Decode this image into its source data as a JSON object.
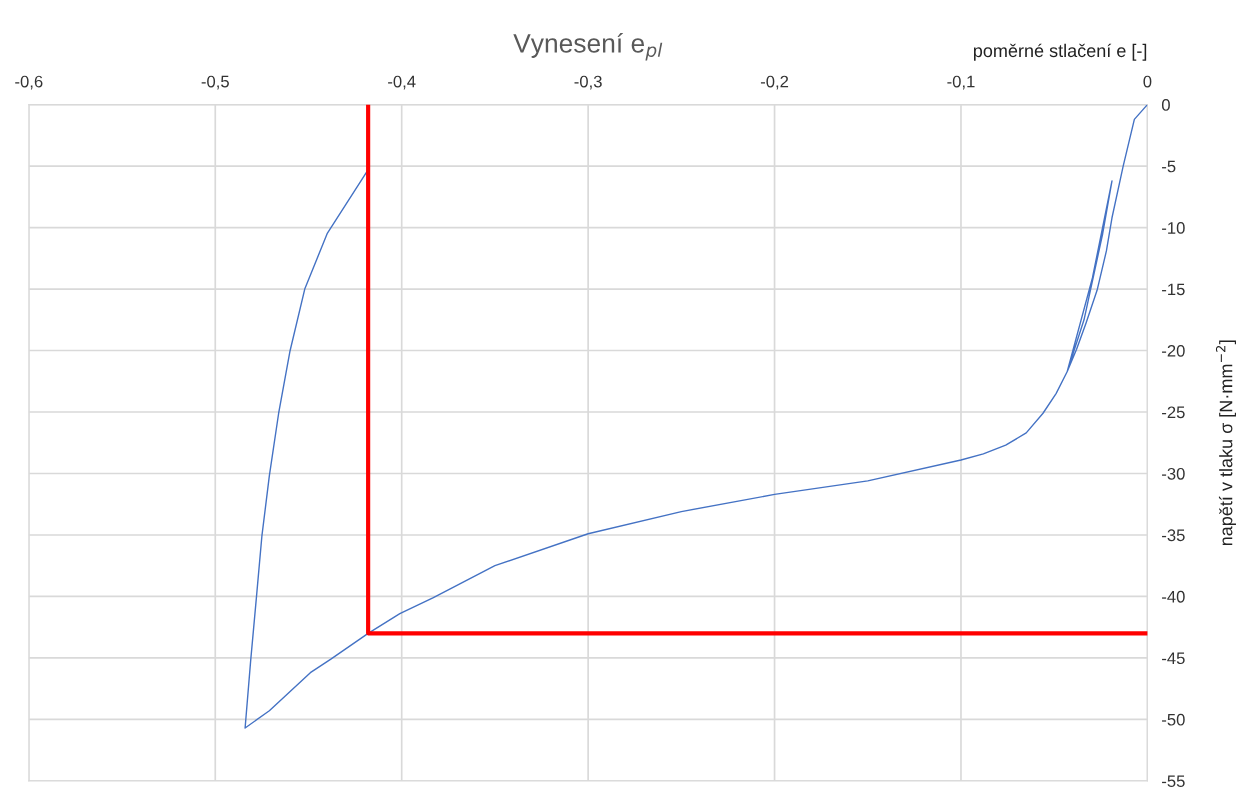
{
  "chart_data": {
    "type": "line",
    "title": "Vynesení e$_{pl}$",
    "xlabel": "poměrné stlačení e [-]",
    "ylabel": "napětí v tlaku σ [N·mm$^{−2}$]",
    "xlim": [
      -0.6,
      0
    ],
    "xticks": [
      {
        "value": -0.6,
        "label": "-0,6"
      },
      {
        "value": -0.5,
        "label": "-0,5"
      },
      {
        "value": -0.4,
        "label": "-0,4"
      },
      {
        "value": -0.3,
        "label": "-0,3"
      },
      {
        "value": -0.2,
        "label": "-0,2"
      },
      {
        "value": -0.1,
        "label": "-0,1"
      },
      {
        "value": 0,
        "label": "0"
      }
    ],
    "ylim": [
      -55,
      0
    ],
    "yticks": [
      -55,
      -50,
      -45,
      -40,
      -35,
      -30,
      -25,
      -20,
      -15,
      -10,
      -5,
      0
    ],
    "grid": true,
    "legend": false,
    "marker": "none",
    "line_style": "solid",
    "series": [
      {
        "color": "#4472c4",
        "x": [
          0,
          -0.007,
          -0.013,
          -0.019,
          -0.022,
          -0.027,
          -0.033,
          -0.038,
          -0.043,
          -0.0295,
          -0.019,
          -0.024,
          -0.034,
          -0.043,
          -0.049,
          -0.056,
          -0.065,
          -0.076,
          -0.088,
          -0.1,
          -0.15,
          -0.2,
          -0.25,
          -0.3,
          -0.35,
          -0.383,
          -0.401,
          -0.418,
          -0.438,
          -0.449,
          -0.471,
          -0.484,
          -0.481,
          -0.478,
          -0.475,
          -0.471,
          -0.466,
          -0.46,
          -0.452,
          -0.44,
          -0.418
        ],
        "values": [
          0,
          -1.2,
          -5,
          -9.2,
          -11.9,
          -15.1,
          -17.8,
          -19.9,
          -21.7,
          -14.1,
          -6.2,
          -10.5,
          -17.5,
          -21.7,
          -23.5,
          -25.1,
          -26.7,
          -27.7,
          -28.4,
          -28.9,
          -30.6,
          -31.7,
          -33.1,
          -34.9,
          -37.5,
          -40.1,
          -41.4,
          -43,
          -45.1,
          -46.2,
          -49.3,
          -50.7,
          -45.2,
          -40.2,
          -35.1,
          -30.2,
          -25.1,
          -20.1,
          -15,
          -10.5,
          -5.3
        ]
      },
      {
        "color": "#ff0000",
        "x": [
          -0.418,
          -0.418,
          0
        ],
        "values": [
          0,
          -43,
          -43
        ]
      }
    ]
  }
}
